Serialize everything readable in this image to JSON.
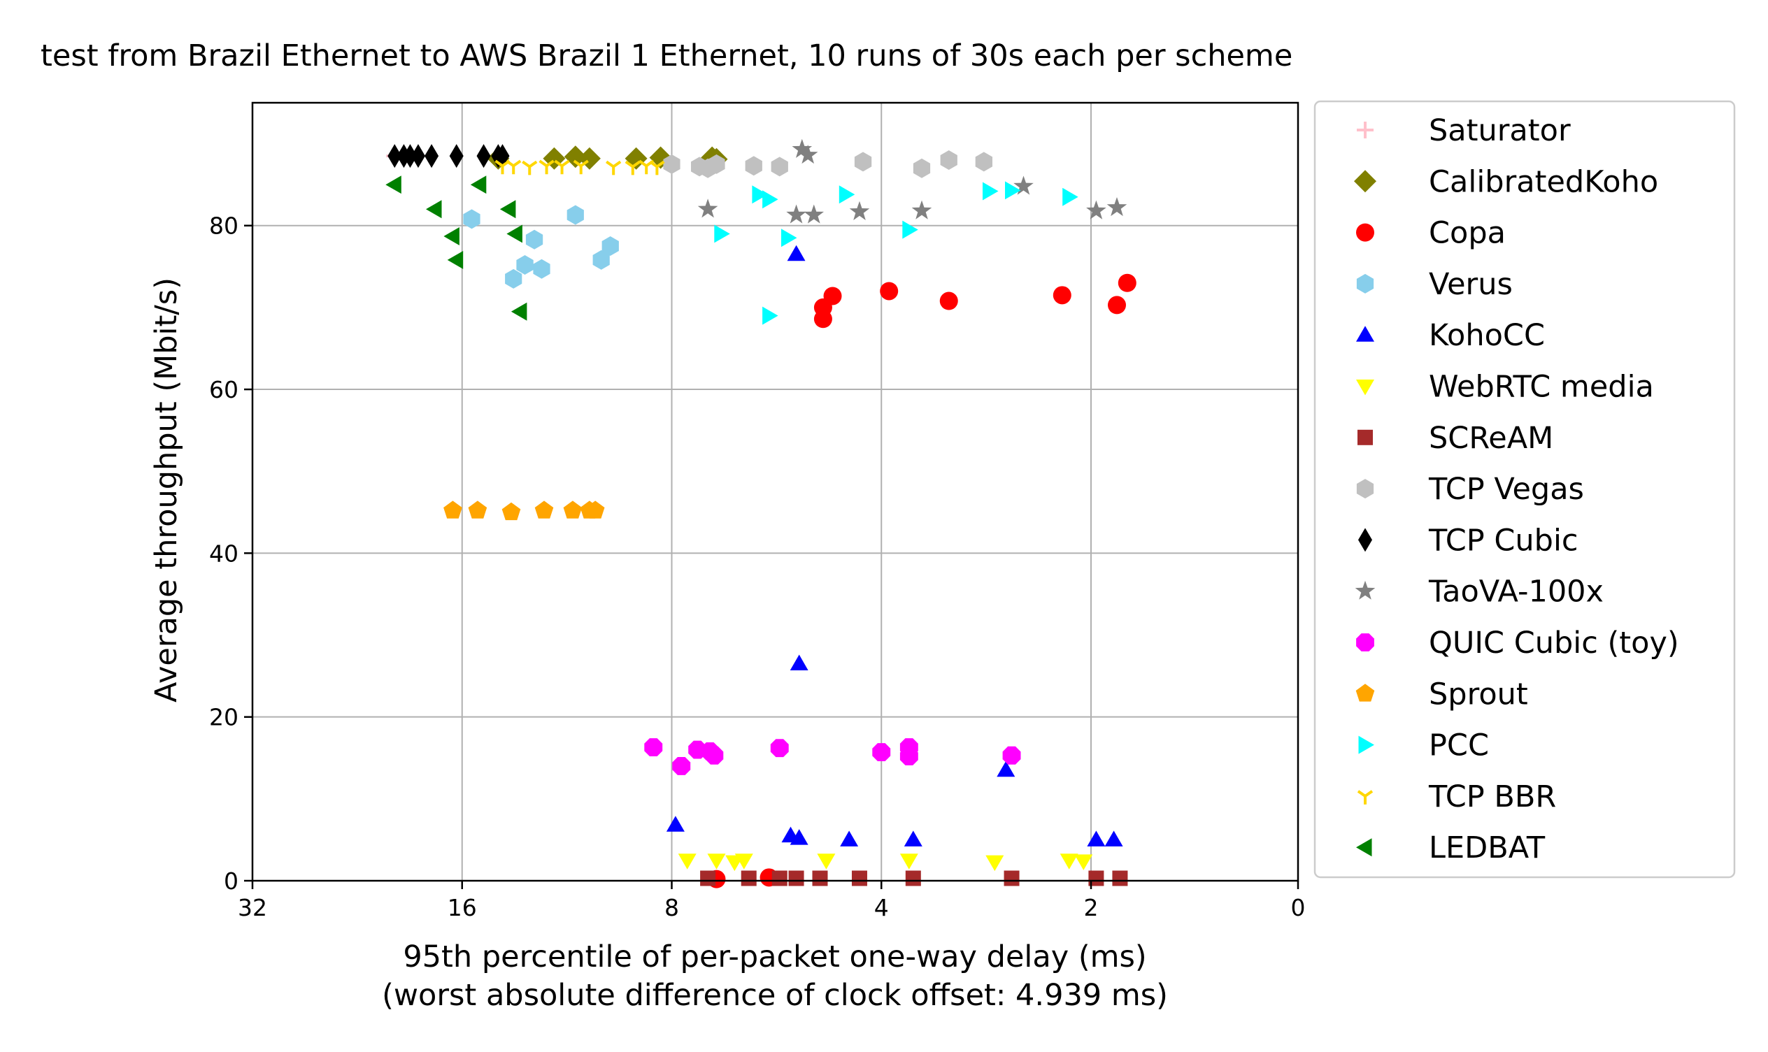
{
  "chart_data": {
    "type": "scatter",
    "title": "test from Brazil Ethernet to AWS Brazil 1 Ethernet, 10 runs of 30s each per scheme",
    "xlabel": "95th percentile of per-packet one-way delay (ms)",
    "xlabel2": "(worst absolute difference of clock offset: 4.939 ms)",
    "ylabel": "Average throughput (Mbit/s)",
    "xscale": "log2, inverted",
    "xlim": [
      32,
      0
    ],
    "ylim": [
      0,
      95
    ],
    "xticks": [
      "32",
      "16",
      "8",
      "4",
      "2",
      "0"
    ],
    "yticks": [
      "0",
      "20",
      "40",
      "60",
      "80"
    ],
    "grid": true,
    "legend_position": "outside-right",
    "series": [
      {
        "name": "Saturator",
        "marker": "plus",
        "color": "#ffc0cb",
        "points": [
          [
            20.0,
            88.5
          ]
        ]
      },
      {
        "name": "CalibratedKoho",
        "marker": "diamond",
        "color": "#808000",
        "points": [
          [
            14.2,
            88.2
          ],
          [
            11.8,
            88.2
          ],
          [
            11.0,
            88.4
          ],
          [
            10.5,
            88.2
          ],
          [
            9.0,
            88.2
          ],
          [
            8.3,
            88.3
          ],
          [
            7.0,
            88.3
          ],
          [
            6.9,
            88.1
          ]
        ]
      },
      {
        "name": "Copa",
        "marker": "circle",
        "color": "#ff0000",
        "points": [
          [
            4.7,
            71.4
          ],
          [
            4.85,
            70.0
          ],
          [
            4.85,
            68.6
          ],
          [
            3.9,
            72.0
          ],
          [
            3.2,
            70.8
          ],
          [
            2.2,
            71.5
          ],
          [
            1.75,
            70.3
          ],
          [
            1.65,
            73.0
          ],
          [
            6.9,
            0.2
          ],
          [
            5.8,
            0.4
          ]
        ]
      },
      {
        "name": "Verus",
        "marker": "hexagon",
        "color": "#87ceeb",
        "points": [
          [
            15.5,
            80.8
          ],
          [
            13.5,
            73.5
          ],
          [
            13.0,
            75.2
          ],
          [
            12.6,
            78.3
          ],
          [
            12.3,
            74.7
          ],
          [
            11.0,
            81.3
          ],
          [
            10.1,
            75.8
          ],
          [
            9.8,
            77.5
          ]
        ]
      },
      {
        "name": "KohoCC",
        "marker": "triangle-up",
        "color": "#0000ff",
        "points": [
          [
            5.3,
            76.5
          ],
          [
            5.25,
            26.5
          ],
          [
            7.9,
            6.8
          ],
          [
            5.4,
            5.5
          ],
          [
            5.25,
            5.2
          ],
          [
            4.45,
            5.0
          ],
          [
            3.6,
            5.0
          ],
          [
            2.65,
            13.5
          ],
          [
            1.95,
            5.0
          ],
          [
            1.78,
            5.0
          ]
        ]
      },
      {
        "name": "WebRTC media",
        "marker": "triangle-down",
        "color": "#ffff00",
        "points": [
          [
            7.6,
            2.5
          ],
          [
            6.9,
            2.5
          ],
          [
            6.5,
            2.3
          ],
          [
            6.3,
            2.5
          ],
          [
            4.8,
            2.5
          ],
          [
            3.65,
            2.5
          ],
          [
            2.75,
            2.3
          ],
          [
            2.15,
            2.5
          ],
          [
            2.05,
            2.4
          ]
        ]
      },
      {
        "name": "SCReAM",
        "marker": "square",
        "color": "#a52a2a",
        "points": [
          [
            7.1,
            0.3
          ],
          [
            6.2,
            0.3
          ],
          [
            5.6,
            0.3
          ],
          [
            5.3,
            0.3
          ],
          [
            4.9,
            0.3
          ],
          [
            4.3,
            0.3
          ],
          [
            3.6,
            0.3
          ],
          [
            2.6,
            0.3
          ],
          [
            1.95,
            0.3
          ],
          [
            1.72,
            0.3
          ]
        ]
      },
      {
        "name": "TCP Vegas",
        "marker": "hexagon",
        "color": "#c0c0c0",
        "points": [
          [
            8.0,
            87.5
          ],
          [
            7.3,
            87.2
          ],
          [
            7.1,
            87.0
          ],
          [
            6.9,
            87.5
          ],
          [
            6.1,
            87.3
          ],
          [
            5.6,
            87.2
          ],
          [
            4.25,
            87.8
          ],
          [
            3.5,
            87.0
          ],
          [
            3.2,
            88.0
          ],
          [
            2.85,
            87.8
          ]
        ]
      },
      {
        "name": "TCP Cubic",
        "marker": "thin-diamond",
        "color": "#000000",
        "points": [
          [
            20.0,
            88.5
          ],
          [
            19.4,
            88.5
          ],
          [
            19.0,
            88.5
          ],
          [
            18.5,
            88.5
          ],
          [
            17.7,
            88.5
          ],
          [
            16.3,
            88.5
          ],
          [
            14.9,
            88.5
          ],
          [
            14.2,
            88.5
          ],
          [
            14.0,
            88.5
          ]
        ]
      },
      {
        "name": "TaoVA-100x",
        "marker": "star",
        "color": "#808080",
        "points": [
          [
            5.2,
            89.3
          ],
          [
            5.1,
            88.6
          ],
          [
            7.1,
            82.0
          ],
          [
            5.3,
            81.3
          ],
          [
            5.0,
            81.3
          ],
          [
            4.3,
            81.7
          ],
          [
            3.5,
            81.8
          ],
          [
            2.5,
            84.8
          ],
          [
            1.95,
            81.8
          ],
          [
            1.75,
            82.2
          ]
        ]
      },
      {
        "name": "QUIC Cubic (toy)",
        "marker": "octagon",
        "color": "#ff00ff",
        "points": [
          [
            8.5,
            16.3
          ],
          [
            7.75,
            14.0
          ],
          [
            7.35,
            16.0
          ],
          [
            7.05,
            15.8
          ],
          [
            6.95,
            15.3
          ],
          [
            5.6,
            16.2
          ],
          [
            4.0,
            15.7
          ],
          [
            3.65,
            16.3
          ],
          [
            3.65,
            15.2
          ],
          [
            2.6,
            15.3
          ]
        ]
      },
      {
        "name": "Sprout",
        "marker": "pentagon",
        "color": "#ffa500",
        "points": [
          [
            16.5,
            45.2
          ],
          [
            15.2,
            45.2
          ],
          [
            13.6,
            45.0
          ],
          [
            12.2,
            45.2
          ],
          [
            11.1,
            45.2
          ],
          [
            10.5,
            45.2
          ],
          [
            10.3,
            45.2
          ]
        ]
      },
      {
        "name": "PCC",
        "marker": "triangle-right",
        "color": "#00ffff",
        "points": [
          [
            6.0,
            83.8
          ],
          [
            5.8,
            83.2
          ],
          [
            4.5,
            83.8
          ],
          [
            2.8,
            84.2
          ],
          [
            2.6,
            84.3
          ],
          [
            2.15,
            83.5
          ],
          [
            6.8,
            79.0
          ],
          [
            5.45,
            78.5
          ],
          [
            3.65,
            79.5
          ],
          [
            5.8,
            69.0
          ]
        ]
      },
      {
        "name": "TCP BBR",
        "marker": "tri-down",
        "color": "#ffd700",
        "points": [
          [
            14.0,
            87.3
          ],
          [
            13.5,
            87.3
          ],
          [
            12.8,
            87.2
          ],
          [
            12.1,
            87.3
          ],
          [
            11.5,
            87.3
          ],
          [
            10.8,
            87.3
          ],
          [
            9.7,
            87.2
          ],
          [
            9.1,
            87.2
          ],
          [
            8.7,
            87.3
          ],
          [
            8.4,
            87.2
          ]
        ]
      },
      {
        "name": "LEDBAT",
        "marker": "triangle-left",
        "color": "#008000",
        "points": [
          [
            20.0,
            85.0
          ],
          [
            17.5,
            82.0
          ],
          [
            16.5,
            78.7
          ],
          [
            16.3,
            75.8
          ],
          [
            15.1,
            85.0
          ],
          [
            13.7,
            82.0
          ],
          [
            13.4,
            79.0
          ],
          [
            13.2,
            69.5
          ]
        ]
      }
    ]
  }
}
